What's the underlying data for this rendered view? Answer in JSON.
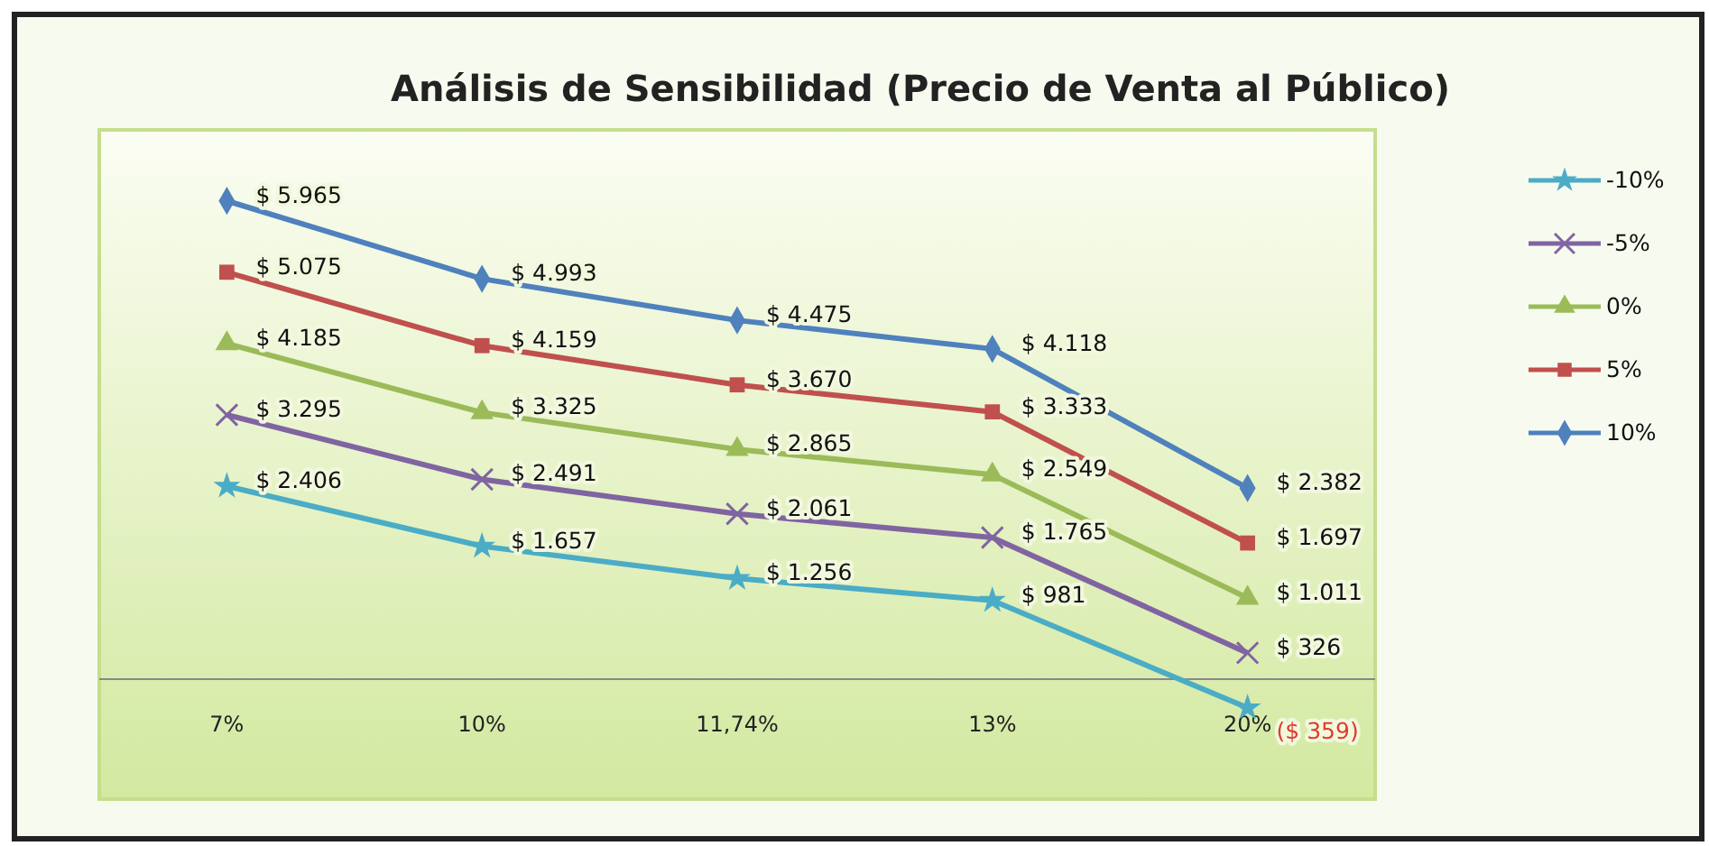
{
  "chart_data": {
    "type": "line",
    "title": "Análisis de Sensibilidad (Precio de Venta al Público)",
    "categories": [
      "7%",
      "10%",
      "11,74%",
      "13%",
      "20%"
    ],
    "series": [
      {
        "name": "-10%",
        "color": "#4bacc6",
        "marker": "star",
        "values": [
          2406,
          1657,
          1256,
          981,
          -359
        ],
        "value_labels": [
          "$ 2.406",
          "$ 1.657",
          "$ 1.256",
          "$ 981",
          "($ 359)"
        ]
      },
      {
        "name": "-5%",
        "color": "#8064a2",
        "marker": "cross",
        "values": [
          3295,
          2491,
          2061,
          1765,
          326
        ],
        "value_labels": [
          "$ 3.295",
          "$ 2.491",
          "$ 2.061",
          "$ 1.765",
          "$ 326"
        ]
      },
      {
        "name": "0%",
        "color": "#9bbb59",
        "marker": "triangle",
        "values": [
          4185,
          3325,
          2865,
          2549,
          1011
        ],
        "value_labels": [
          "$ 4.185",
          "$ 3.325",
          "$ 2.865",
          "$ 2.549",
          "$ 1.011"
        ]
      },
      {
        "name": "5%",
        "color": "#c0504d",
        "marker": "square",
        "values": [
          5075,
          4159,
          3670,
          3333,
          1697
        ],
        "value_labels": [
          "$ 5.075",
          "$ 4.159",
          "$ 3.670",
          "$ 3.333",
          "$ 1.697"
        ]
      },
      {
        "name": "10%",
        "color": "#4f81bd",
        "marker": "diamond",
        "values": [
          5965,
          4993,
          4475,
          4118,
          2382
        ],
        "value_labels": [
          "$ 5.965",
          "$ 4.993",
          "$ 4.475",
          "$ 4.118",
          "$ 2.382"
        ]
      }
    ],
    "legend": "right",
    "tick_labels": "x"
  }
}
